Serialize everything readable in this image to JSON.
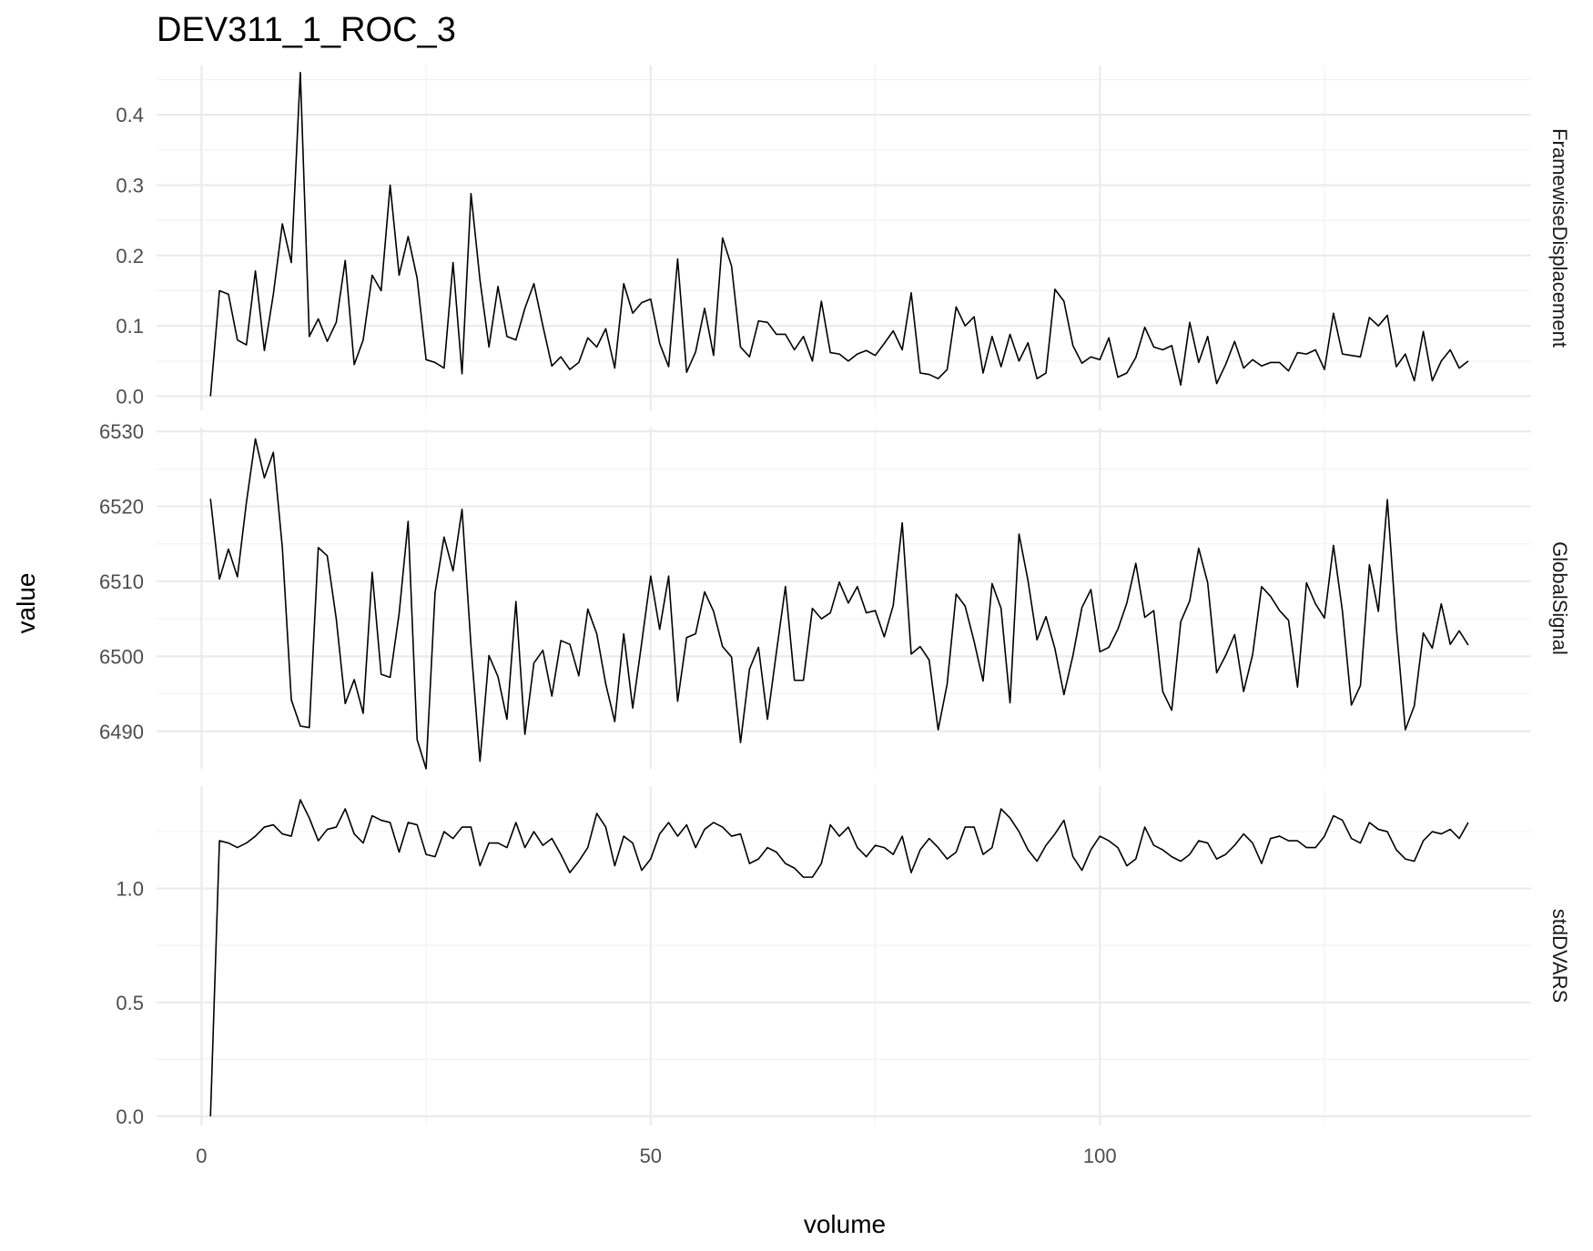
{
  "chart_data": {
    "type": "line",
    "title": "DEV311_1_ROC_3",
    "xlabel": "volume",
    "ylabel": "value",
    "xlim": [
      -5,
      148
    ],
    "x_ticks": [
      0,
      50,
      100
    ],
    "x_tick_labels": [
      "0",
      "50",
      "100"
    ],
    "grid": true,
    "x": [
      1,
      2,
      3,
      4,
      5,
      6,
      7,
      8,
      9,
      10,
      11,
      12,
      13,
      14,
      15,
      16,
      17,
      18,
      19,
      20,
      21,
      22,
      23,
      24,
      25,
      26,
      27,
      28,
      29,
      30,
      31,
      32,
      33,
      34,
      35,
      36,
      37,
      38,
      39,
      40,
      41,
      42,
      43,
      44,
      45,
      46,
      47,
      48,
      49,
      50,
      51,
      52,
      53,
      54,
      55,
      56,
      57,
      58,
      59,
      60,
      61,
      62,
      63,
      64,
      65,
      66,
      67,
      68,
      69,
      70,
      71,
      72,
      73,
      74,
      75,
      76,
      77,
      78,
      79,
      80,
      81,
      82,
      83,
      84,
      85,
      86,
      87,
      88,
      89,
      90,
      91,
      92,
      93,
      94,
      95,
      96,
      97,
      98,
      99,
      100,
      101,
      102,
      103,
      104,
      105,
      106,
      107,
      108,
      109,
      110,
      111,
      112,
      113,
      114,
      115,
      116,
      117,
      118,
      119,
      120,
      121,
      122,
      123,
      124,
      125,
      126,
      127,
      128,
      129,
      130,
      131,
      132,
      133,
      134,
      135,
      136,
      137,
      138,
      139,
      140,
      141,
      142
    ],
    "facets": [
      {
        "name": "FramewiseDisplacement",
        "ylim": [
          -0.02,
          0.47
        ],
        "y_ticks": [
          0.0,
          0.1,
          0.2,
          0.3,
          0.4
        ],
        "y_tick_labels": [
          "0.0",
          "0.1",
          "0.2",
          "0.3",
          "0.4"
        ],
        "values": [
          0.0,
          0.15,
          0.145,
          0.08,
          0.073,
          0.178,
          0.065,
          0.145,
          0.245,
          0.19,
          0.46,
          0.085,
          0.11,
          0.078,
          0.105,
          0.193,
          0.045,
          0.08,
          0.172,
          0.15,
          0.3,
          0.172,
          0.227,
          0.168,
          0.052,
          0.048,
          0.04,
          0.19,
          0.032,
          0.288,
          0.165,
          0.07,
          0.156,
          0.085,
          0.08,
          0.125,
          0.16,
          0.1,
          0.043,
          0.056,
          0.038,
          0.048,
          0.083,
          0.07,
          0.096,
          0.04,
          0.16,
          0.118,
          0.133,
          0.138,
          0.075,
          0.042,
          0.195,
          0.034,
          0.063,
          0.125,
          0.058,
          0.225,
          0.185,
          0.07,
          0.056,
          0.107,
          0.105,
          0.088,
          0.088,
          0.066,
          0.085,
          0.05,
          0.135,
          0.062,
          0.06,
          0.05,
          0.06,
          0.065,
          0.058,
          0.075,
          0.093,
          0.066,
          0.147,
          0.033,
          0.031,
          0.025,
          0.038,
          0.127,
          0.1,
          0.113,
          0.033,
          0.085,
          0.042,
          0.088,
          0.05,
          0.076,
          0.025,
          0.033,
          0.152,
          0.135,
          0.072,
          0.047,
          0.056,
          0.052,
          0.083,
          0.027,
          0.033,
          0.055,
          0.098,
          0.07,
          0.066,
          0.072,
          0.016,
          0.105,
          0.048,
          0.085,
          0.018,
          0.045,
          0.078,
          0.04,
          0.052,
          0.043,
          0.048,
          0.048,
          0.036,
          0.062,
          0.06,
          0.066,
          0.038,
          0.118,
          0.06,
          0.058,
          0.056,
          0.112,
          0.1,
          0.115,
          0.042,
          0.06,
          0.022,
          0.092,
          0.022,
          0.05,
          0.066,
          0.04,
          0.05
        ]
      },
      {
        "name": "GlobalSignal",
        "ylim": [
          6485,
          6530.5
        ],
        "y_ticks": [
          6490,
          6500,
          6510,
          6520,
          6530
        ],
        "y_tick_labels": [
          "6490",
          "6500",
          "6510",
          "6520",
          "6530"
        ],
        "values": [
          6521,
          6510.3,
          6514.3,
          6510.6,
          6520.5,
          6529,
          6523.8,
          6527.2,
          6514.5,
          6494.2,
          6490.7,
          6490.5,
          6514.5,
          6513.4,
          6505,
          6493.7,
          6496.9,
          6492.4,
          6511.2,
          6497.6,
          6497.2,
          6505.7,
          6518,
          6488.9,
          6485,
          6508.5,
          6515.9,
          6511.4,
          6519.6,
          6501.4,
          6486,
          6500.1,
          6497.3,
          6491.6,
          6507.3,
          6489.6,
          6499.1,
          6500.8,
          6494.7,
          6502.1,
          6501.6,
          6497.4,
          6506.3,
          6503,
          6496.3,
          6491.3,
          6503,
          6493.1,
          6501.8,
          6510.7,
          6503.6,
          6510.7,
          6494,
          6502.5,
          6503,
          6508.6,
          6506,
          6501.3,
          6499.9,
          6488.5,
          6498.3,
          6501.2,
          6491.6,
          6500.6,
          6509.3,
          6496.8,
          6496.8,
          6506.4,
          6505,
          6505.8,
          6509.9,
          6507.1,
          6509.3,
          6505.8,
          6506.1,
          6502.6,
          6506.8,
          6517.8,
          6500.3,
          6501.3,
          6499.5,
          6490.2,
          6496.3,
          6508.3,
          6506.7,
          6502,
          6496.7,
          6509.7,
          6506.4,
          6493.8,
          6516.3,
          6510.1,
          6502.2,
          6505.3,
          6501,
          6494.9,
          6500.1,
          6506.5,
          6508.9,
          6500.6,
          6501.2,
          6503.6,
          6507.1,
          6512.4,
          6505.2,
          6506.1,
          6495.3,
          6492.8,
          6504.6,
          6507.4,
          6514.4,
          6509.8,
          6497.8,
          6500.1,
          6502.9,
          6495.3,
          6500.2,
          6509.3,
          6508,
          6506.1,
          6504.8,
          6495.9,
          6509.8,
          6507,
          6505.1,
          6514.8,
          6506,
          6493.5,
          6496.1,
          6512.2,
          6506,
          6520.9,
          6503.8,
          6490.2,
          6493.4,
          6503.1,
          6501.1,
          6507,
          6501.6,
          6503.4,
          6501.5
        ]
      },
      {
        "name": "stdDVARS",
        "ylim": [
          -0.04,
          1.45
        ],
        "y_ticks": [
          0.0,
          0.5,
          1.0
        ],
        "y_tick_labels": [
          "0.0",
          "0.5",
          "1.0"
        ],
        "values": [
          0.0,
          1.21,
          1.2,
          1.18,
          1.2,
          1.23,
          1.27,
          1.28,
          1.24,
          1.23,
          1.39,
          1.31,
          1.21,
          1.26,
          1.27,
          1.35,
          1.24,
          1.2,
          1.32,
          1.3,
          1.29,
          1.16,
          1.29,
          1.28,
          1.15,
          1.14,
          1.25,
          1.22,
          1.27,
          1.27,
          1.1,
          1.2,
          1.2,
          1.18,
          1.29,
          1.18,
          1.25,
          1.19,
          1.22,
          1.15,
          1.07,
          1.12,
          1.18,
          1.33,
          1.27,
          1.1,
          1.23,
          1.2,
          1.08,
          1.13,
          1.24,
          1.29,
          1.23,
          1.28,
          1.18,
          1.26,
          1.29,
          1.27,
          1.23,
          1.24,
          1.11,
          1.13,
          1.18,
          1.16,
          1.11,
          1.09,
          1.05,
          1.05,
          1.11,
          1.28,
          1.23,
          1.27,
          1.18,
          1.14,
          1.19,
          1.18,
          1.15,
          1.23,
          1.07,
          1.17,
          1.22,
          1.18,
          1.13,
          1.16,
          1.27,
          1.27,
          1.15,
          1.18,
          1.35,
          1.31,
          1.25,
          1.17,
          1.12,
          1.19,
          1.24,
          1.3,
          1.14,
          1.08,
          1.17,
          1.23,
          1.21,
          1.18,
          1.1,
          1.13,
          1.27,
          1.19,
          1.17,
          1.14,
          1.12,
          1.15,
          1.21,
          1.2,
          1.13,
          1.15,
          1.19,
          1.24,
          1.2,
          1.11,
          1.22,
          1.23,
          1.21,
          1.21,
          1.18,
          1.18,
          1.23,
          1.32,
          1.3,
          1.22,
          1.2,
          1.29,
          1.26,
          1.25,
          1.17,
          1.13,
          1.12,
          1.21,
          1.25,
          1.24,
          1.26,
          1.22,
          1.29
        ]
      }
    ]
  }
}
